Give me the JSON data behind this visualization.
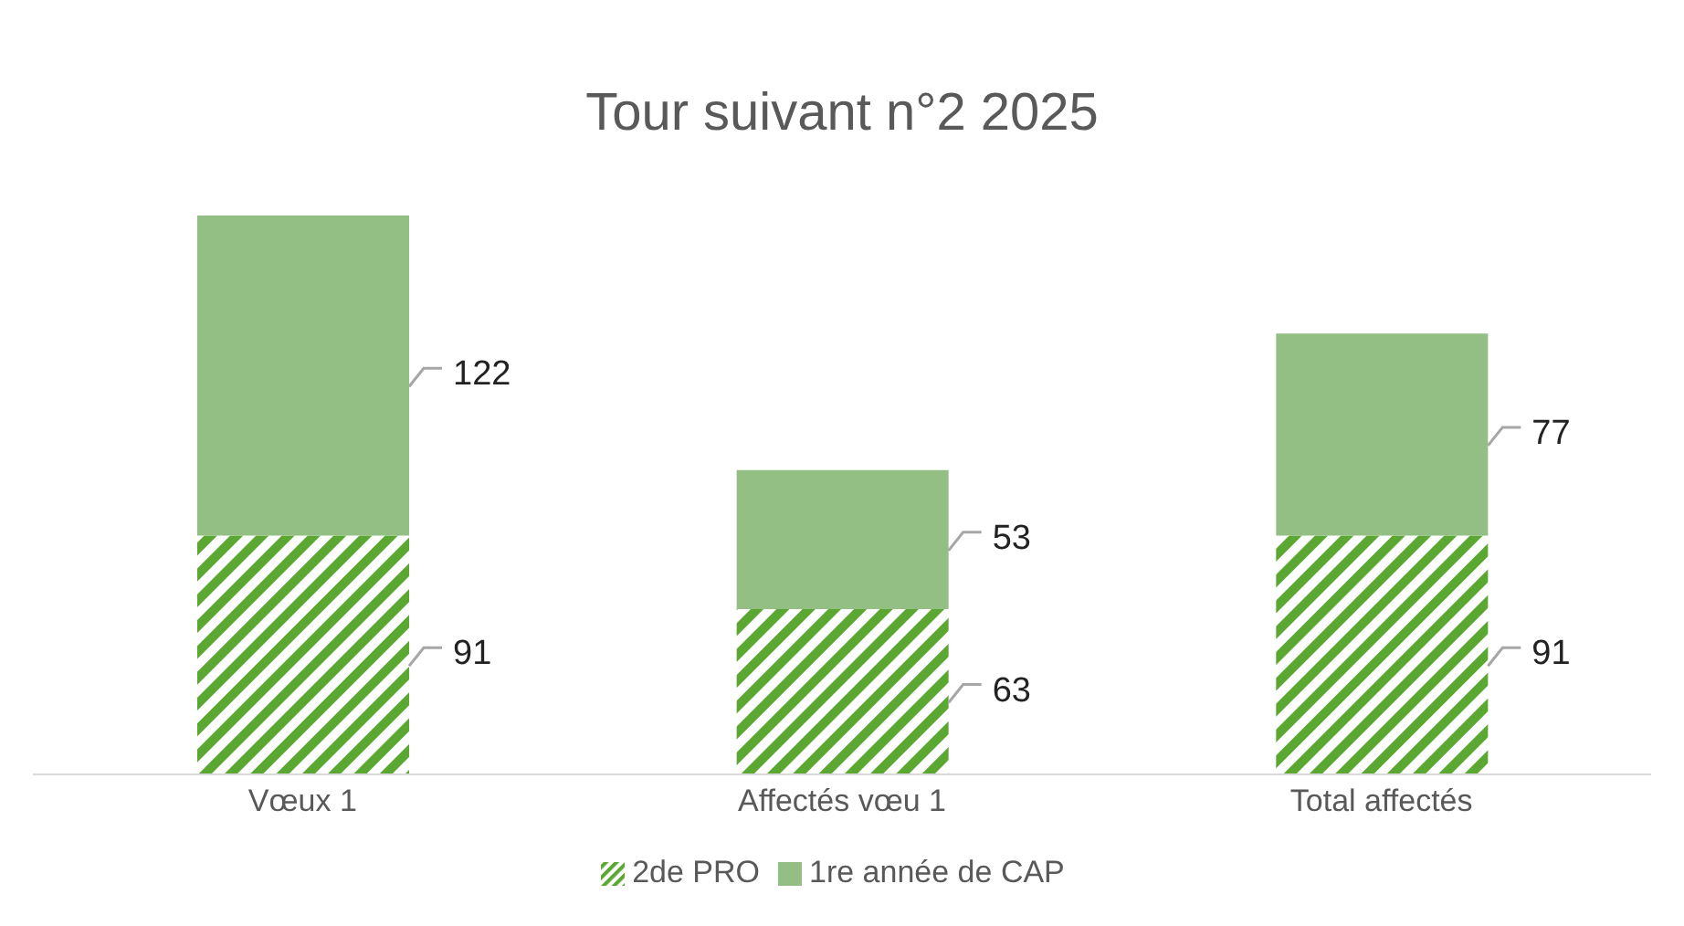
{
  "chart_data": {
    "type": "bar",
    "title": "Tour suivant n°2 2025",
    "categories": [
      "Vœux 1",
      "Affectés vœu 1",
      "Total affectés"
    ],
    "stacked": true,
    "data_labels": true,
    "legend": "bottom",
    "grid": false,
    "series": [
      {
        "name": "2de PRO",
        "color": "#5aa832",
        "values": [
          91,
          63,
          91
        ]
      },
      {
        "name": "1re année de CAP",
        "color": "#93bf85",
        "values": [
          122,
          53,
          77
        ]
      }
    ]
  }
}
